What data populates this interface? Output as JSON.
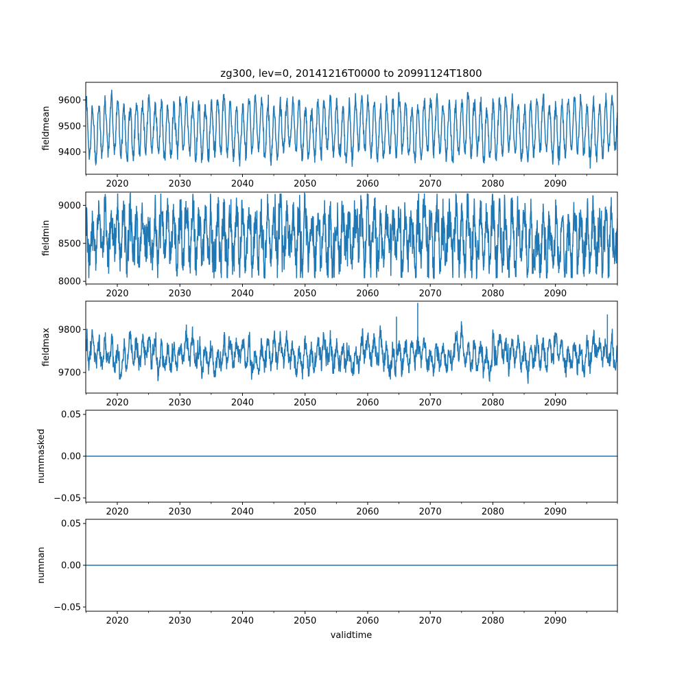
{
  "chart_data": {
    "type": "line",
    "title": "zg300, lev=0, 20141216T0000 to 20991124T1800",
    "xlabel": "validtime",
    "series_color": "#1f77b4",
    "xlim": [
      2014.96,
      2099.9
    ],
    "x_ticks": [
      {
        "value": 2020,
        "label": "2020"
      },
      {
        "value": 2030,
        "label": "2030"
      },
      {
        "value": 2040,
        "label": "2040"
      },
      {
        "value": 2050,
        "label": "2050"
      },
      {
        "value": 2060,
        "label": "2060"
      },
      {
        "value": 2070,
        "label": "2070"
      },
      {
        "value": 2080,
        "label": "2080"
      },
      {
        "value": 2090,
        "label": "2090"
      }
    ],
    "x_minor_ticks": [
      2015,
      2025,
      2035,
      2045,
      2055,
      2065,
      2075,
      2085,
      2095,
      2100
    ],
    "panels": [
      {
        "name": "fieldmean",
        "ylabel": "fieldmean",
        "ylim": [
          9315,
          9668
        ],
        "y_ticks": [
          {
            "value": 9400,
            "label": "9400"
          },
          {
            "value": 9500,
            "label": "9500"
          },
          {
            "value": 9600,
            "label": "9600"
          }
        ],
        "signal": {
          "mean": 9490,
          "seasonal_amp": 100,
          "noise": 14,
          "spikes": [],
          "lower_clip": 9325,
          "upper_clip": 9655
        }
      },
      {
        "name": "fieldmin",
        "ylabel": "fieldmin",
        "ylim": [
          7965,
          9175
        ],
        "y_ticks": [
          {
            "value": 8000,
            "label": "8000"
          },
          {
            "value": 8500,
            "label": "8500"
          },
          {
            "value": 9000,
            "label": "9000"
          }
        ],
        "signal": {
          "mean": 8575,
          "seasonal_amp": 300,
          "noise": 150,
          "spikes": [],
          "lower_clip": 8040,
          "upper_clip": 9160
        }
      },
      {
        "name": "fieldmax",
        "ylabel": "fieldmax",
        "ylim": [
          9652,
          9866
        ],
        "y_ticks": [
          {
            "value": 9700,
            "label": "9700"
          },
          {
            "value": 9800,
            "label": "9800"
          }
        ],
        "signal": {
          "mean": 9742,
          "seasonal_amp": 25,
          "noise": 11,
          "spikes": [
            [
              2068.0,
              9862
            ],
            [
              2064.6,
              9830
            ],
            [
              2098.3,
              9835
            ]
          ],
          "lower_clip": 9660,
          "upper_clip": 9860
        }
      },
      {
        "name": "nummasked",
        "ylabel": "nummasked",
        "ylim": [
          -0.055,
          0.055
        ],
        "y_ticks": [
          {
            "value": -0.05,
            "label": "−0.05"
          },
          {
            "value": 0.0,
            "label": "0.00"
          },
          {
            "value": 0.05,
            "label": "0.05"
          }
        ],
        "constant": 0.0
      },
      {
        "name": "numnan",
        "ylabel": "numnan",
        "ylim": [
          -0.055,
          0.055
        ],
        "y_ticks": [
          {
            "value": -0.05,
            "label": "−0.05"
          },
          {
            "value": 0.0,
            "label": "0.00"
          },
          {
            "value": 0.05,
            "label": "0.05"
          }
        ],
        "constant": 0.0
      }
    ]
  }
}
